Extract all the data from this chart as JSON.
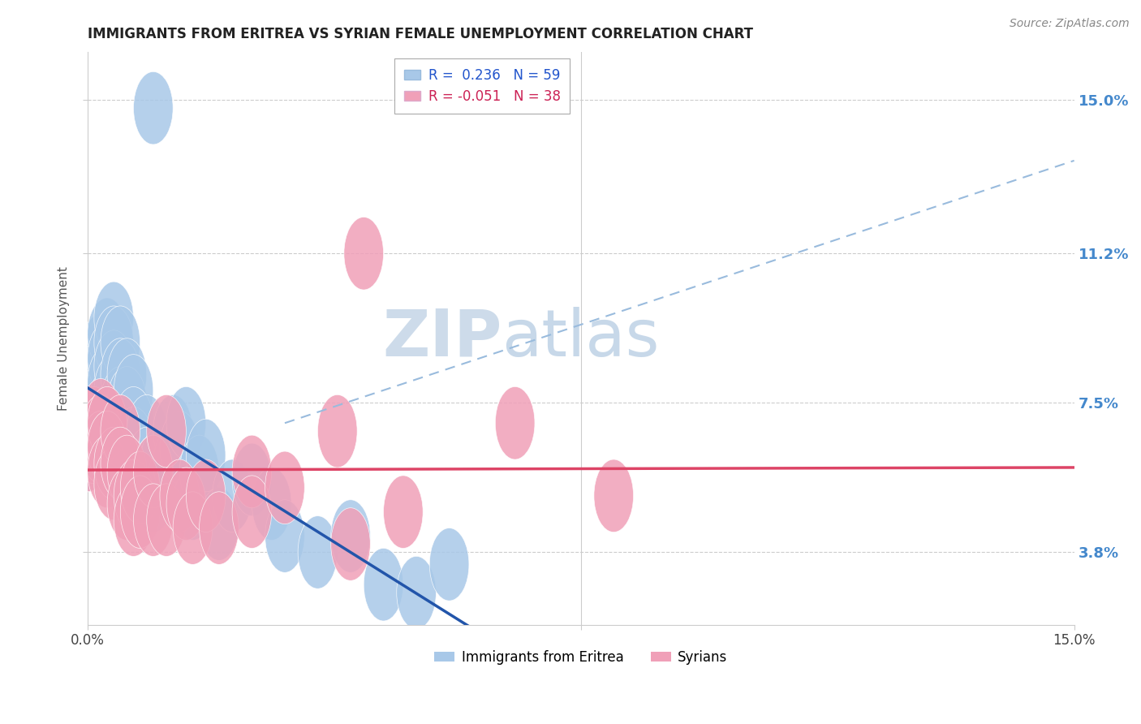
{
  "title": "IMMIGRANTS FROM ERITREA VS SYRIAN FEMALE UNEMPLOYMENT CORRELATION CHART",
  "source": "Source: ZipAtlas.com",
  "ylabel": "Female Unemployment",
  "y_tick_labels": [
    "15.0%",
    "11.2%",
    "7.5%",
    "3.8%"
  ],
  "y_tick_values": [
    0.15,
    0.112,
    0.075,
    0.038
  ],
  "xmin": 0.0,
  "xmax": 0.15,
  "ymin": 0.02,
  "ymax": 0.162,
  "legend_r1": "R =  0.236   N = 59",
  "legend_r2": "R = -0.051   N = 38",
  "color_blue": "#a8c8e8",
  "color_pink": "#f0a0b8",
  "color_line_blue": "#2255aa",
  "color_line_pink": "#dd4466",
  "color_dash": "#99bbdd",
  "eritrea_scatter": [
    [
      0.0,
      0.062
    ],
    [
      0.001,
      0.072
    ],
    [
      0.001,
      0.085
    ],
    [
      0.001,
      0.078
    ],
    [
      0.002,
      0.088
    ],
    [
      0.002,
      0.082
    ],
    [
      0.002,
      0.076
    ],
    [
      0.002,
      0.07
    ],
    [
      0.003,
      0.092
    ],
    [
      0.003,
      0.086
    ],
    [
      0.003,
      0.08
    ],
    [
      0.003,
      0.074
    ],
    [
      0.003,
      0.068
    ],
    [
      0.003,
      0.062
    ],
    [
      0.004,
      0.096
    ],
    [
      0.004,
      0.09
    ],
    [
      0.004,
      0.084
    ],
    [
      0.004,
      0.078
    ],
    [
      0.004,
      0.072
    ],
    [
      0.004,
      0.065
    ],
    [
      0.005,
      0.09
    ],
    [
      0.005,
      0.082
    ],
    [
      0.005,
      0.075
    ],
    [
      0.005,
      0.068
    ],
    [
      0.005,
      0.062
    ],
    [
      0.005,
      0.058
    ],
    [
      0.006,
      0.082
    ],
    [
      0.006,
      0.075
    ],
    [
      0.006,
      0.068
    ],
    [
      0.006,
      0.062
    ],
    [
      0.007,
      0.078
    ],
    [
      0.007,
      0.07
    ],
    [
      0.007,
      0.065
    ],
    [
      0.008,
      0.062
    ],
    [
      0.008,
      0.055
    ],
    [
      0.009,
      0.068
    ],
    [
      0.009,
      0.06
    ],
    [
      0.01,
      0.058
    ],
    [
      0.01,
      0.052
    ],
    [
      0.011,
      0.06
    ],
    [
      0.012,
      0.055
    ],
    [
      0.013,
      0.068
    ],
    [
      0.013,
      0.06
    ],
    [
      0.014,
      0.064
    ],
    [
      0.015,
      0.07
    ],
    [
      0.016,
      0.05
    ],
    [
      0.017,
      0.058
    ],
    [
      0.018,
      0.062
    ],
    [
      0.02,
      0.045
    ],
    [
      0.022,
      0.052
    ],
    [
      0.025,
      0.056
    ],
    [
      0.028,
      0.05
    ],
    [
      0.03,
      0.042
    ],
    [
      0.035,
      0.038
    ],
    [
      0.04,
      0.042
    ],
    [
      0.045,
      0.03
    ],
    [
      0.05,
      0.028
    ],
    [
      0.055,
      0.035
    ],
    [
      0.01,
      0.148
    ]
  ],
  "syrian_scatter": [
    [
      0.0,
      0.062
    ],
    [
      0.0,
      0.068
    ],
    [
      0.001,
      0.07
    ],
    [
      0.001,
      0.064
    ],
    [
      0.002,
      0.072
    ],
    [
      0.002,
      0.068
    ],
    [
      0.002,
      0.064
    ],
    [
      0.003,
      0.07
    ],
    [
      0.003,
      0.064
    ],
    [
      0.003,
      0.058
    ],
    [
      0.004,
      0.06
    ],
    [
      0.004,
      0.055
    ],
    [
      0.005,
      0.068
    ],
    [
      0.005,
      0.06
    ],
    [
      0.006,
      0.058
    ],
    [
      0.006,
      0.05
    ],
    [
      0.007,
      0.052
    ],
    [
      0.007,
      0.046
    ],
    [
      0.008,
      0.054
    ],
    [
      0.008,
      0.048
    ],
    [
      0.01,
      0.058
    ],
    [
      0.01,
      0.046
    ],
    [
      0.012,
      0.068
    ],
    [
      0.012,
      0.046
    ],
    [
      0.014,
      0.052
    ],
    [
      0.015,
      0.05
    ],
    [
      0.016,
      0.044
    ],
    [
      0.018,
      0.052
    ],
    [
      0.02,
      0.044
    ],
    [
      0.025,
      0.058
    ],
    [
      0.025,
      0.048
    ],
    [
      0.03,
      0.054
    ],
    [
      0.038,
      0.068
    ],
    [
      0.04,
      0.04
    ],
    [
      0.048,
      0.048
    ],
    [
      0.042,
      0.112
    ],
    [
      0.065,
      0.07
    ],
    [
      0.08,
      0.052
    ]
  ]
}
